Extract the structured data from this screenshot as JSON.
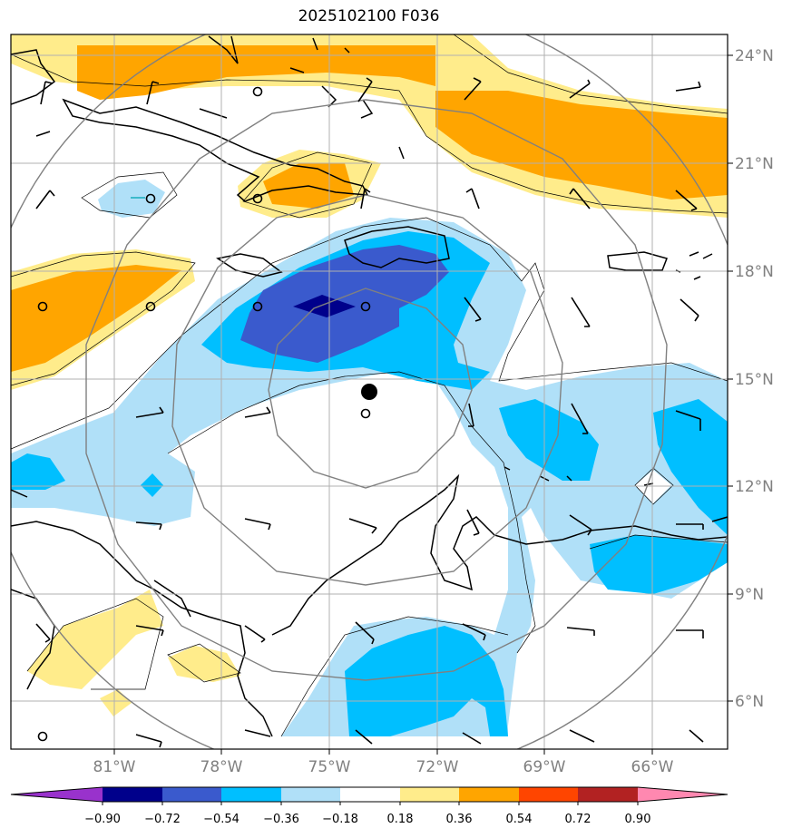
{
  "title": "2025102100 F036",
  "map": {
    "lat_ticks": [
      "24°N",
      "21°N",
      "18°N",
      "15°N",
      "12°N",
      "9°N",
      "6°N"
    ],
    "lon_ticks": [
      "81°W",
      "78°W",
      "75°W",
      "72°W",
      "69°W",
      "66°W"
    ],
    "colors": {
      "neg_090": "#00008b",
      "neg_072": "#3a5acd",
      "neg_054": "#00bfff",
      "neg_036": "#b0e0f8",
      "pos_018": "#ffec8b",
      "pos_036": "#ffa500",
      "pos_054": "#ff4500",
      "pos_072": "#b22222",
      "pos_090": "#ff88b0"
    }
  },
  "colorbar": {
    "levels": [
      "−0.90",
      "−0.72",
      "−0.54",
      "−0.36",
      "−0.18",
      "0.18",
      "0.36",
      "0.54",
      "0.72",
      "0.90"
    ],
    "colors": [
      "#9932cc",
      "#00008b",
      "#3a5acd",
      "#00bfff",
      "#b0e0f8",
      "#ffffff",
      "#ffec8b",
      "#ffa500",
      "#ff4500",
      "#b22222",
      "#ff88b0"
    ]
  }
}
